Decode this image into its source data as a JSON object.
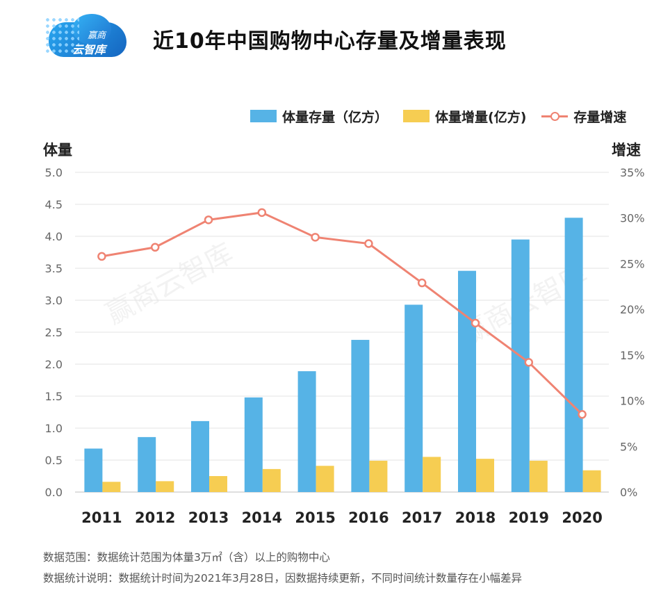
{
  "logo": {
    "line1": "赢商",
    "line2": "云智库"
  },
  "title": "近10年中国购物中心存量及增量表现",
  "legend": [
    {
      "label": "体量存量（亿方）",
      "type": "bar",
      "color": "#56b3e6"
    },
    {
      "label": "体量增量(亿方)",
      "type": "bar",
      "color": "#f6cd52"
    },
    {
      "label": "存量增速",
      "type": "line",
      "color": "#ef8372"
    }
  ],
  "chart_data": {
    "type": "bar",
    "categories": [
      "2011",
      "2012",
      "2013",
      "2014",
      "2015",
      "2016",
      "2017",
      "2018",
      "2019",
      "2020"
    ],
    "series": [
      {
        "name": "体量存量（亿方）",
        "type": "bar",
        "axis": "left",
        "color": "#56b3e6",
        "values": [
          0.68,
          0.86,
          1.11,
          1.48,
          1.89,
          2.38,
          2.93,
          3.46,
          3.95,
          4.29
        ]
      },
      {
        "name": "体量增量(亿方)",
        "type": "bar",
        "axis": "left",
        "color": "#f6cd52",
        "values": [
          0.16,
          0.17,
          0.25,
          0.36,
          0.41,
          0.49,
          0.55,
          0.52,
          0.49,
          0.34
        ]
      },
      {
        "name": "存量增速",
        "type": "line",
        "axis": "right",
        "color": "#ef8372",
        "values": [
          25.8,
          26.8,
          29.8,
          30.6,
          27.9,
          27.2,
          22.9,
          18.5,
          14.2,
          8.5
        ]
      }
    ],
    "ylabel": "体量",
    "y2label": "增速",
    "ylim": [
      0,
      5
    ],
    "yticks": [
      "0.0",
      "0.5",
      "1.0",
      "1.5",
      "2.0",
      "2.5",
      "3.0",
      "3.5",
      "4.0",
      "4.5",
      "5.0"
    ],
    "y2lim": [
      0,
      35
    ],
    "y2ticks": [
      "0%",
      "5%",
      "10%",
      "15%",
      "20%",
      "25%",
      "30%",
      "35%"
    ],
    "grid": true,
    "legend_position": "top-right"
  },
  "watermark": "赢商云智库",
  "notes": [
    "数据范围：数据统计范围为体量3万㎡（含）以上的购物中心",
    "数据统计说明：数据统计时间为2021年3月28日，因数据持续更新，不同时间统计数量存在小幅差异"
  ]
}
